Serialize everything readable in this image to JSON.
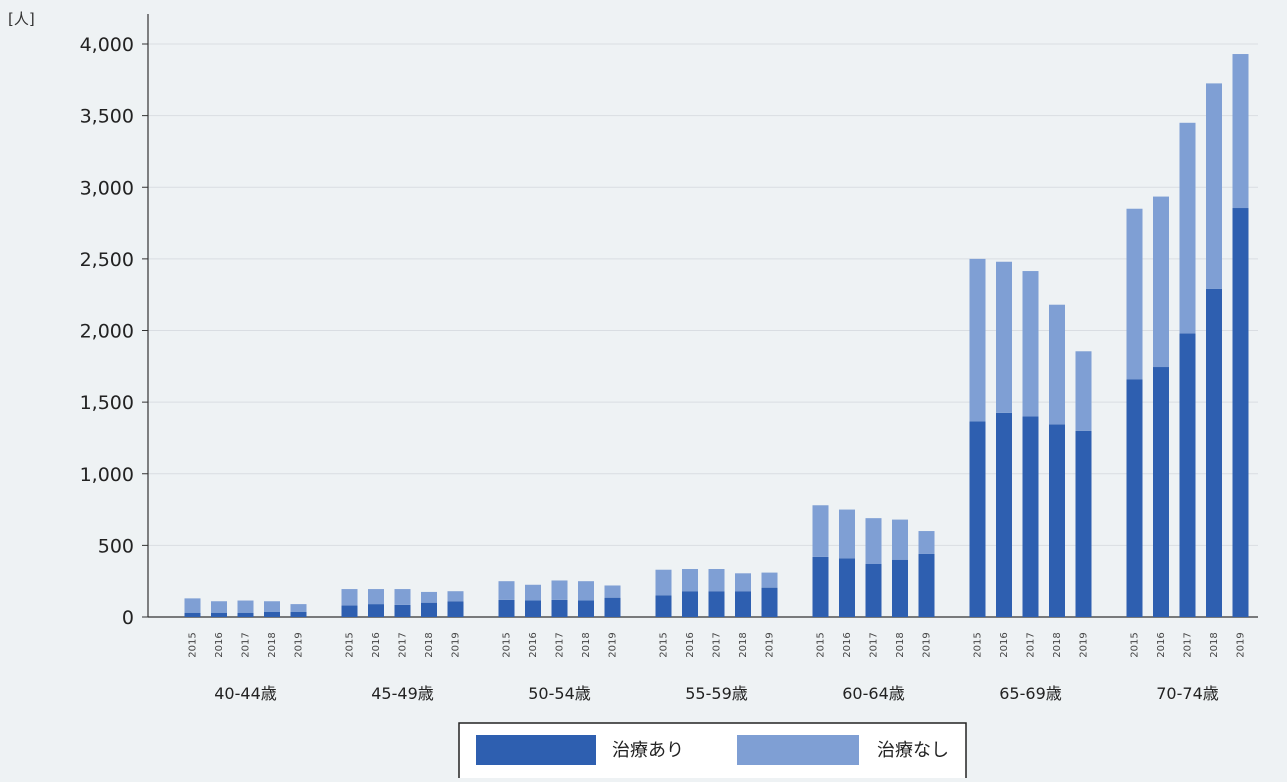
{
  "chart_data": {
    "type": "bar",
    "stacked": true,
    "unit_label": "[人]",
    "yticks": [
      "0",
      "500",
      "1,000",
      "1,500",
      "2,000",
      "2,500",
      "3,000",
      "3,500",
      "4,000"
    ],
    "ylim": [
      0,
      4000
    ],
    "grid": true,
    "legend_position": "bottom",
    "groups": [
      {
        "label": "40-44歳",
        "years": [
          "2015",
          "2016",
          "2017",
          "2018",
          "2019"
        ]
      },
      {
        "label": "45-49歳",
        "years": [
          "2015",
          "2016",
          "2017",
          "2018",
          "2019"
        ]
      },
      {
        "label": "50-54歳",
        "years": [
          "2015",
          "2016",
          "2017",
          "2018",
          "2019"
        ]
      },
      {
        "label": "55-59歳",
        "years": [
          "2015",
          "2016",
          "2017",
          "2018",
          "2019"
        ]
      },
      {
        "label": "60-64歳",
        "years": [
          "2015",
          "2016",
          "2017",
          "2018",
          "2019"
        ]
      },
      {
        "label": "65-69歳",
        "years": [
          "2015",
          "2016",
          "2017",
          "2018",
          "2019"
        ]
      },
      {
        "label": "70-74歳",
        "years": [
          "2015",
          "2016",
          "2017",
          "2018",
          "2019"
        ]
      }
    ],
    "series": [
      {
        "name": "治療あり",
        "color": "#2e5fb0",
        "values": [
          [
            30,
            30,
            30,
            35,
            35
          ],
          [
            80,
            90,
            85,
            100,
            110
          ],
          [
            120,
            115,
            120,
            115,
            135
          ],
          [
            150,
            180,
            180,
            180,
            205
          ],
          [
            420,
            410,
            370,
            400,
            440
          ],
          [
            1365,
            1425,
            1400,
            1345,
            1300
          ],
          [
            1660,
            1745,
            1980,
            2290,
            2855
          ]
        ]
      },
      {
        "name": "治療なし",
        "color": "#7f9fd4",
        "values": [
          [
            100,
            80,
            85,
            75,
            55
          ],
          [
            115,
            105,
            110,
            75,
            70
          ],
          [
            130,
            110,
            135,
            135,
            85
          ],
          [
            180,
            155,
            155,
            125,
            105
          ],
          [
            360,
            340,
            320,
            280,
            160
          ],
          [
            1135,
            1055,
            1015,
            835,
            555
          ],
          [
            1190,
            1190,
            1470,
            1435,
            1075
          ]
        ]
      }
    ]
  }
}
